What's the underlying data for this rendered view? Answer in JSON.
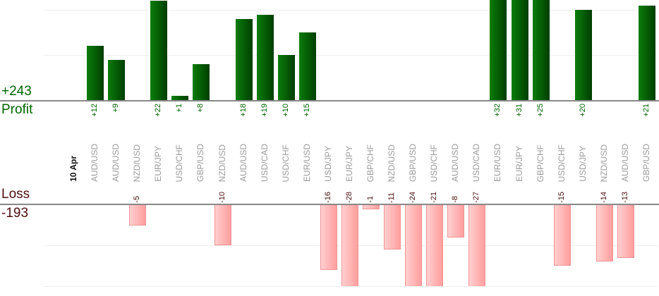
{
  "summary": {
    "profit_total": "+243",
    "profit_label": "Profit",
    "loss_label": "Loss",
    "loss_total": "-193"
  },
  "colors": {
    "profit_bar_light": "#0b7d0b",
    "profit_bar_dark": "#003e00",
    "profit_text": "#006600",
    "loss_bar_light": "#ffcfcf",
    "loss_bar_dark": "#ff9e9e",
    "loss_bar_border": "#f09494",
    "loss_text": "#4b0f0f",
    "category_text": "#9b9b9b",
    "date_text": "#111111",
    "axis_line": "#888888",
    "grid_line": "#eeeeee"
  },
  "chart_data": {
    "type": "bar",
    "title": "",
    "date_label": "10 Apr",
    "categories": [
      "10 Apr",
      "AUD/USD",
      "AUD/USD",
      "NZD/USD",
      "EUR/JPY",
      "USD/CHF",
      "GBP/USD",
      "NZD/USD",
      "AUD/USD",
      "USD/CAD",
      "USD/CHF",
      "EUR/USD",
      "USD/JPY",
      "EUR/JPY",
      "GBP/CHF",
      "NZD/USD",
      "GBP/USD",
      "USD/CHF",
      "AUD/USD",
      "USD/CAD",
      "EUR/USD",
      "EUR/JPY",
      "GBP/CHF",
      "USD/CHF",
      "USD/JPY",
      "NZD/USD",
      "AUD/USD",
      "GBP/USD"
    ],
    "series": [
      {
        "name": "Profit",
        "total": "+243",
        "values": [
          null,
          12,
          9,
          null,
          22,
          1,
          8,
          null,
          18,
          19,
          10,
          15,
          null,
          null,
          null,
          null,
          null,
          null,
          null,
          null,
          32,
          31,
          25,
          null,
          20,
          null,
          null,
          21
        ]
      },
      {
        "name": "Loss",
        "total": "-193",
        "values": [
          null,
          null,
          null,
          -5,
          null,
          null,
          null,
          -10,
          null,
          null,
          null,
          null,
          -16,
          -28,
          -1,
          -11,
          -24,
          -21,
          -8,
          -27,
          null,
          null,
          null,
          -15,
          null,
          -14,
          -13,
          null
        ]
      }
    ],
    "profit_gridlines": [
      10,
      20
    ],
    "loss_gridlines": [
      -10,
      -20
    ],
    "profit_visible_max": 22,
    "loss_visible_min": -20,
    "grid": true,
    "legend": false
  }
}
